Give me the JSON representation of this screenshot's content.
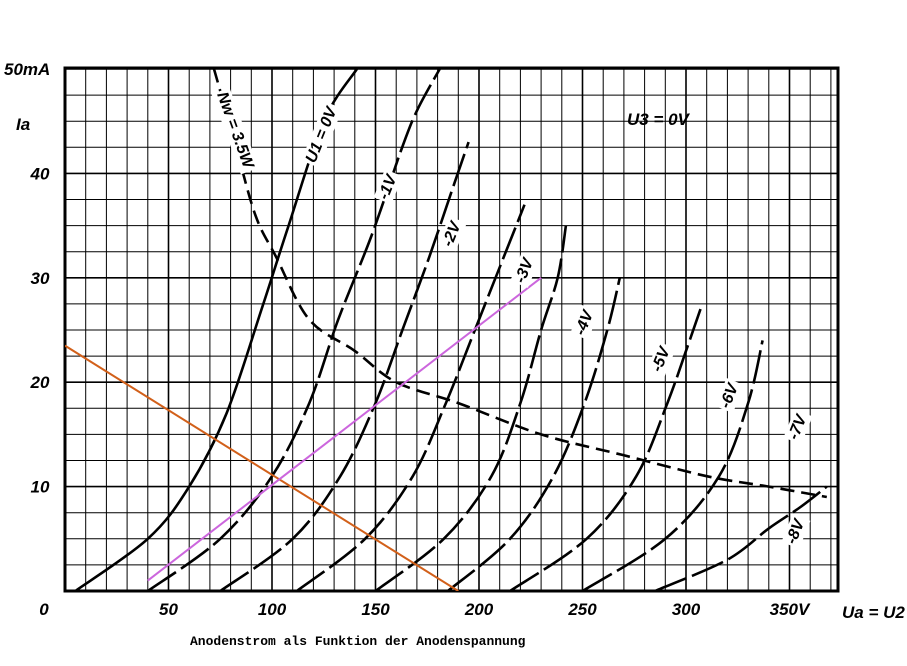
{
  "chart_data": {
    "type": "line",
    "caption": "Anodenstrom als Funktion der Anodenspannung",
    "xlabel": "Ua = U2",
    "ylabel": "Ia",
    "y_unit_label": "50mA",
    "annotation": "U3 = 0V",
    "xlim": [
      0,
      375
    ],
    "ylim": [
      0,
      50
    ],
    "x_ticks": [
      {
        "value": 0,
        "label": "0"
      },
      {
        "value": 50,
        "label": "50"
      },
      {
        "value": 100,
        "label": "100"
      },
      {
        "value": 150,
        "label": "150"
      },
      {
        "value": 200,
        "label": "200"
      },
      {
        "value": 250,
        "label": "250"
      },
      {
        "value": 300,
        "label": "300"
      },
      {
        "value": 350,
        "label": "350V"
      }
    ],
    "y_ticks": [
      {
        "value": 10,
        "label": "10"
      },
      {
        "value": 20,
        "label": "20"
      },
      {
        "value": 30,
        "label": "30"
      },
      {
        "value": 40,
        "label": "40"
      },
      {
        "value": 50,
        "label": "50mA"
      }
    ],
    "grid": true,
    "grid_step_x": 10,
    "grid_step_y": 2.5,
    "colors": {
      "curves": "#000000",
      "load_line": "#d2601a",
      "operating_line": "#cc66dd",
      "grid": "#000000"
    },
    "series": [
      {
        "name": "U1 = 0V",
        "points": [
          [
            5,
            0
          ],
          [
            40,
            5
          ],
          [
            60,
            10
          ],
          [
            78,
            17
          ],
          [
            95,
            27
          ],
          [
            108,
            35
          ],
          [
            125,
            45
          ],
          [
            141,
            50
          ]
        ]
      },
      {
        "name": "-1V",
        "points": [
          [
            40,
            0
          ],
          [
            75,
            5
          ],
          [
            100,
            11
          ],
          [
            118,
            18
          ],
          [
            132,
            26
          ],
          [
            148,
            34
          ],
          [
            162,
            42
          ],
          [
            170,
            46
          ],
          [
            181,
            50
          ]
        ]
      },
      {
        "name": "-2V",
        "points": [
          [
            75,
            0
          ],
          [
            110,
            5
          ],
          [
            133,
            11
          ],
          [
            150,
            18
          ],
          [
            163,
            25
          ],
          [
            176,
            32
          ],
          [
            188,
            39
          ],
          [
            195,
            43
          ]
        ]
      },
      {
        "name": "-3V",
        "points": [
          [
            112,
            0
          ],
          [
            145,
            5
          ],
          [
            168,
            11
          ],
          [
            184,
            18
          ],
          [
            198,
            25
          ],
          [
            212,
            32
          ],
          [
            222,
            37
          ]
        ]
      },
      {
        "name": "-4V",
        "points": [
          [
            150,
            0
          ],
          [
            183,
            5
          ],
          [
            206,
            11
          ],
          [
            220,
            18
          ],
          [
            230,
            25
          ],
          [
            238,
            30
          ],
          [
            242,
            35
          ]
        ]
      },
      {
        "name": "-5V",
        "points": [
          [
            185,
            0
          ],
          [
            215,
            5
          ],
          [
            236,
            11
          ],
          [
            251,
            18
          ],
          [
            262,
            25
          ],
          [
            268,
            30
          ]
        ]
      },
      {
        "name": "-6V",
        "points": [
          [
            215,
            0
          ],
          [
            252,
            5
          ],
          [
            276,
            11
          ],
          [
            291,
            18
          ],
          [
            300,
            23
          ],
          [
            307,
            27
          ]
        ]
      },
      {
        "name": "-7V",
        "points": [
          [
            250,
            0
          ],
          [
            290,
            5
          ],
          [
            316,
            11
          ],
          [
            330,
            18
          ],
          [
            337,
            24
          ]
        ]
      },
      {
        "name": "-8V",
        "points": [
          [
            285,
            0
          ],
          [
            320,
            3
          ],
          [
            340,
            6
          ],
          [
            355,
            8
          ],
          [
            368,
            10
          ]
        ]
      },
      {
        "name": "Nw = 3.5W",
        "points": [
          [
            72,
            50
          ],
          [
            82,
            43
          ],
          [
            92,
            36
          ],
          [
            102,
            32
          ],
          [
            118,
            26
          ],
          [
            140,
            23
          ],
          [
            160,
            20
          ],
          [
            190,
            18
          ],
          [
            230,
            15
          ],
          [
            270,
            13
          ],
          [
            310,
            11
          ],
          [
            340,
            10
          ],
          [
            368,
            9
          ]
        ]
      }
    ],
    "load_line": {
      "points": [
        [
          0,
          23.5
        ],
        [
          190,
          0
        ]
      ]
    },
    "operating_line": {
      "points": [
        [
          40,
          1
        ],
        [
          230,
          30
        ]
      ]
    },
    "curve_labels": [
      {
        "text": "U1 = 0V",
        "x": 126,
        "y": 43.5
      },
      {
        "text": "-1V",
        "x": 158,
        "y": 38.5
      },
      {
        "text": "-2V",
        "x": 189,
        "y": 34
      },
      {
        "text": "-3V",
        "x": 224,
        "y": 30.5
      },
      {
        "text": "-4V",
        "x": 253,
        "y": 25.5
      },
      {
        "text": "-5V",
        "x": 290,
        "y": 22
      },
      {
        "text": "-6V",
        "x": 323,
        "y": 18.5
      },
      {
        "text": "-7V",
        "x": 356,
        "y": 15.5
      },
      {
        "text": "-8V",
        "x": 355,
        "y": 5.5
      },
      {
        "text": "Nw = 3.5W",
        "x": 80,
        "y": 44
      }
    ]
  }
}
